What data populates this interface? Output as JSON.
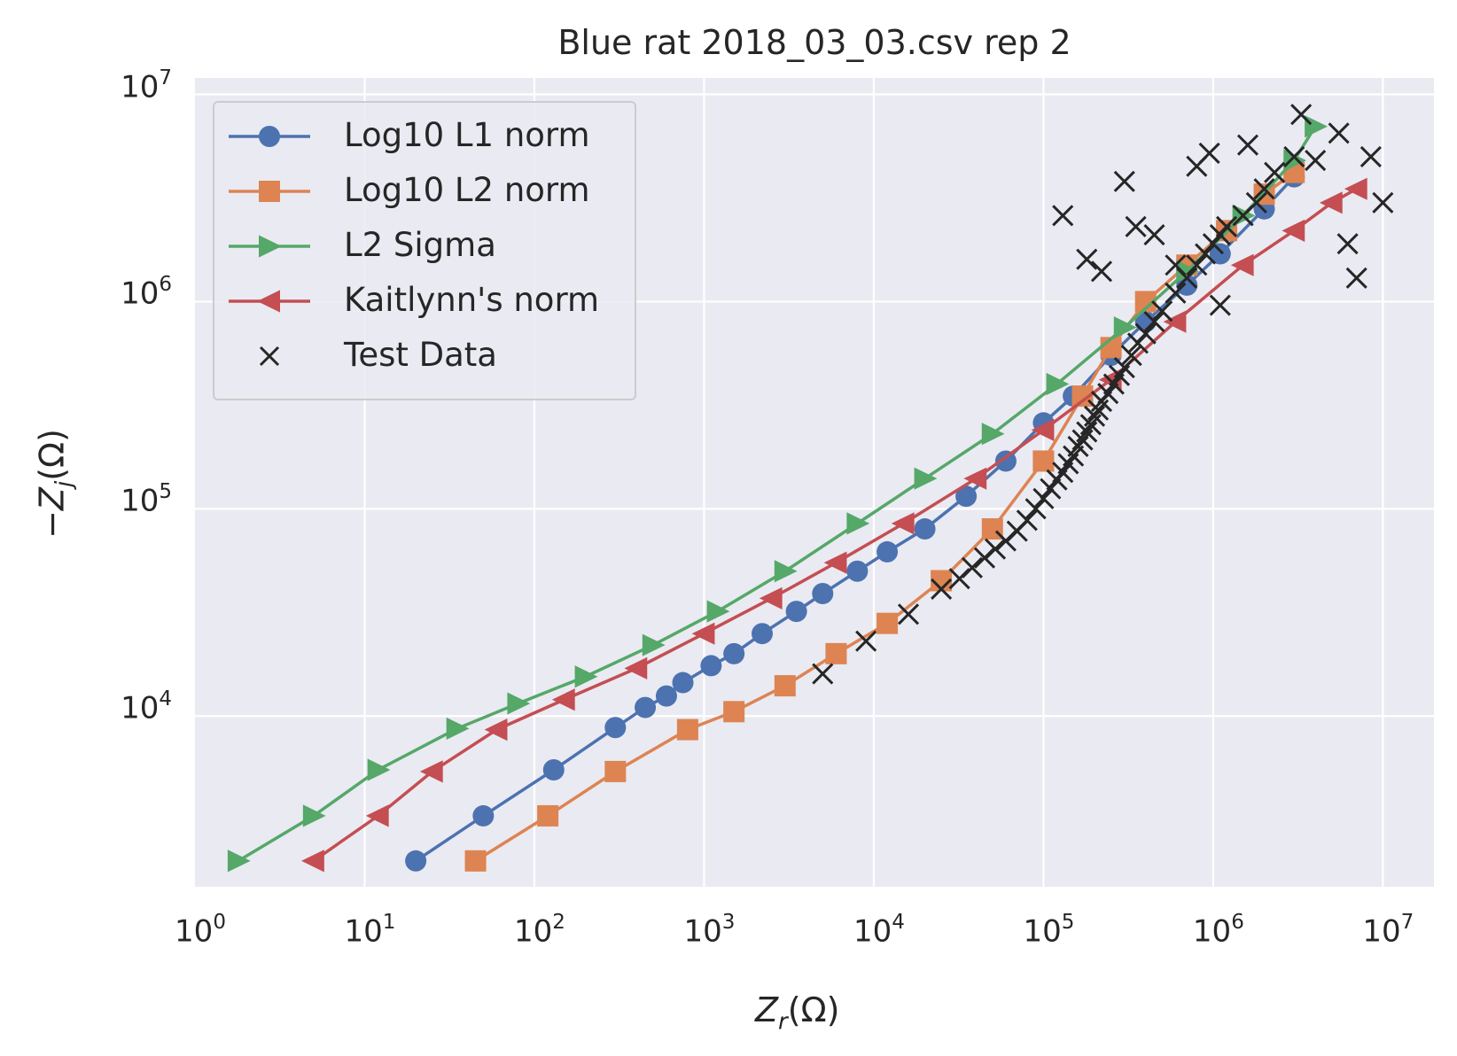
{
  "chart_data": {
    "type": "scatter",
    "title": "Blue rat 2018_03_03.csv rep 2",
    "xlabel": "Z_r(Ω)",
    "ylabel": "−Z_j(Ω)",
    "xscale": "log",
    "yscale": "log",
    "xlim": [
      1,
      20000000
    ],
    "ylim": [
      1500,
      12000000
    ],
    "x_ticks": [
      {
        "base": "10",
        "exp": "0"
      },
      {
        "base": "10",
        "exp": "1"
      },
      {
        "base": "10",
        "exp": "2"
      },
      {
        "base": "10",
        "exp": "3"
      },
      {
        "base": "10",
        "exp": "4"
      },
      {
        "base": "10",
        "exp": "5"
      },
      {
        "base": "10",
        "exp": "6"
      },
      {
        "base": "10",
        "exp": "7"
      }
    ],
    "y_ticks": [
      {
        "base": "10",
        "exp": "4"
      },
      {
        "base": "10",
        "exp": "5"
      },
      {
        "base": "10",
        "exp": "6"
      },
      {
        "base": "10",
        "exp": "7"
      }
    ],
    "grid": true,
    "legend_position": "top-left",
    "series": [
      {
        "name": "Log10 L1 norm",
        "color": "#4c72b0",
        "marker": "circle",
        "line": true,
        "x": [
          20,
          50,
          130,
          300,
          450,
          600,
          750,
          1100,
          1500,
          2200,
          3500,
          5000,
          8000,
          12000,
          20000,
          35000,
          60000,
          100000,
          150000,
          250000,
          400000,
          700000,
          1100000,
          2000000,
          3000000
        ],
        "y": [
          2000,
          3300,
          5500,
          8800,
          11000,
          12500,
          14500,
          17500,
          20000,
          25000,
          32000,
          39000,
          50000,
          62000,
          80000,
          115000,
          170000,
          260000,
          350000,
          550000,
          800000,
          1200000,
          1700000,
          2800000,
          4000000
        ]
      },
      {
        "name": "Log10 L2 norm",
        "color": "#dd8452",
        "marker": "square",
        "line": true,
        "x": [
          45,
          120,
          300,
          800,
          1500,
          3000,
          6000,
          12000,
          25000,
          50000,
          100000,
          170000,
          250000,
          400000,
          700000,
          1200000,
          2000000,
          3000000
        ],
        "y": [
          2000,
          3300,
          5400,
          8600,
          10500,
          14000,
          20000,
          28000,
          45000,
          80000,
          170000,
          350000,
          600000,
          1000000,
          1500000,
          2200000,
          3300000,
          4200000
        ]
      },
      {
        "name": "L2 Sigma",
        "color": "#55a868",
        "marker": "triangle-right",
        "line": true,
        "x": [
          1.8,
          5,
          12,
          35,
          80,
          200,
          500,
          1200,
          3000,
          8000,
          20000,
          50000,
          120000,
          300000,
          700000,
          1500000,
          3000000,
          4000000
        ],
        "y": [
          2000,
          3300,
          5500,
          8700,
          11500,
          15500,
          22000,
          32000,
          50000,
          85000,
          140000,
          230000,
          400000,
          750000,
          1400000,
          2600000,
          4800000,
          7000000
        ]
      },
      {
        "name": "Kaitlynn's norm",
        "color": "#c44e52",
        "marker": "triangle-left",
        "line": true,
        "x": [
          5,
          12,
          25,
          60,
          150,
          400,
          1000,
          2500,
          6000,
          15000,
          40000,
          100000,
          250000,
          600000,
          1500000,
          3000000,
          5000000,
          7000000
        ],
        "y": [
          2000,
          3300,
          5400,
          8600,
          12000,
          17000,
          25000,
          37000,
          55000,
          85000,
          140000,
          240000,
          420000,
          800000,
          1500000,
          2200000,
          3000000,
          3500000
        ]
      },
      {
        "name": "Test Data",
        "color": "#262626",
        "marker": "x",
        "line": false,
        "x": [
          5000,
          9000,
          16000,
          25000,
          32000,
          38000,
          45000,
          52000,
          60000,
          70000,
          80000,
          90000,
          100000,
          110000,
          120000,
          130000,
          140000,
          150000,
          160000,
          170000,
          180000,
          190000,
          200000,
          210000,
          220000,
          240000,
          260000,
          280000,
          300000,
          330000,
          360000,
          400000,
          450000,
          500000,
          600000,
          700000,
          800000,
          900000,
          1000000,
          1100000,
          1200000,
          1500000,
          1800000,
          2000000,
          2300000,
          3000000,
          3300000,
          4000000,
          5500000,
          6200000,
          7000000,
          8500000,
          10000000,
          130000,
          180000,
          300000,
          220000,
          800000,
          950000,
          1600000,
          1100000,
          350000,
          450000,
          600000
        ],
        "y": [
          16000,
          23000,
          31000,
          41000,
          46000,
          52000,
          58000,
          64000,
          70000,
          78000,
          88000,
          100000,
          112000,
          125000,
          138000,
          150000,
          165000,
          180000,
          200000,
          215000,
          235000,
          255000,
          280000,
          300000,
          330000,
          360000,
          400000,
          440000,
          480000,
          550000,
          630000,
          700000,
          800000,
          900000,
          1100000,
          1300000,
          1500000,
          1700000,
          1900000,
          2100000,
          2300000,
          2600000,
          3000000,
          3500000,
          4200000,
          5000000,
          8000000,
          4800000,
          6500000,
          1900000,
          1300000,
          5000000,
          3000000,
          2600000,
          1600000,
          3800000,
          1400000,
          4500000,
          5200000,
          5700000,
          960000,
          2300000,
          2100000,
          1500000
        ]
      }
    ]
  }
}
